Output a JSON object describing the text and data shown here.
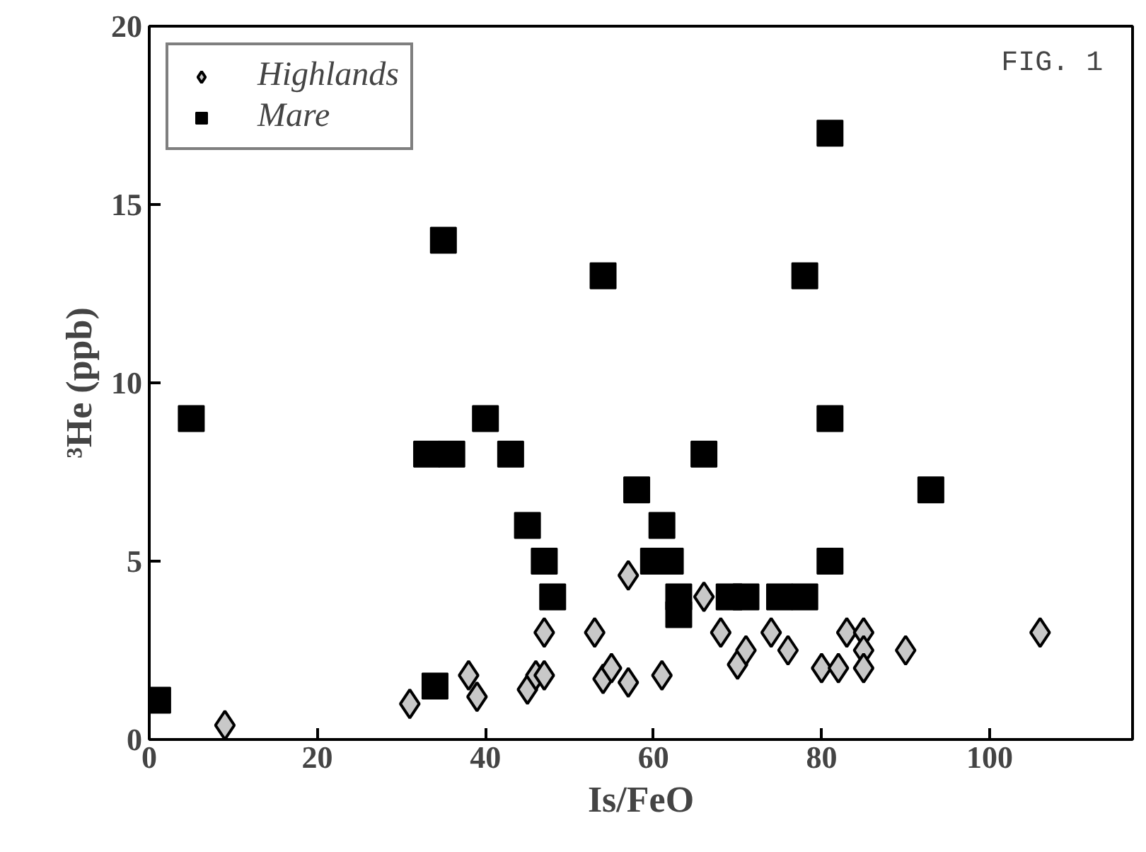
{
  "chart_data": {
    "type": "scatter",
    "xlabel": "Is/FeO",
    "ylabel": "³He (ppb)",
    "annotations": [
      "FIG. 1"
    ],
    "xlim": [
      0,
      117
    ],
    "ylim": [
      0,
      20
    ],
    "xticks": [
      0,
      20,
      40,
      60,
      80,
      100
    ],
    "yticks": [
      0,
      5,
      10,
      15,
      20
    ],
    "grid": false,
    "legend": "top left",
    "series": [
      {
        "name": "Highlands",
        "color": "#c8c8c8",
        "marker": "diamond",
        "x": [
          9,
          31,
          38,
          39,
          45,
          46,
          47,
          47,
          53,
          54,
          55,
          57,
          57,
          61,
          66,
          68,
          70,
          71,
          74,
          76,
          80,
          82,
          83,
          85,
          85,
          85,
          90,
          106
        ],
        "values": [
          0.4,
          1,
          1.8,
          1.2,
          1.4,
          1.8,
          3,
          1.8,
          3,
          1.7,
          2,
          1.6,
          4.6,
          1.8,
          4,
          3,
          2.1,
          2.5,
          3,
          2.5,
          2,
          2,
          3,
          3,
          2.5,
          2,
          2.5,
          3
        ]
      },
      {
        "name": "Mare",
        "color": "#000000",
        "marker": "square",
        "x": [
          1,
          5,
          33,
          36,
          35,
          40,
          43,
          45,
          47,
          48,
          34,
          54,
          58,
          60,
          62,
          61,
          63,
          63,
          66,
          69,
          71,
          75,
          78,
          78,
          81,
          81,
          81,
          93
        ],
        "values": [
          1.1,
          9,
          8,
          8,
          14,
          9,
          8,
          6,
          5,
          4,
          1.5,
          13,
          7,
          5,
          5,
          6,
          4,
          3.5,
          8,
          4,
          4,
          4,
          4,
          13,
          17,
          9,
          5,
          7
        ]
      }
    ]
  }
}
